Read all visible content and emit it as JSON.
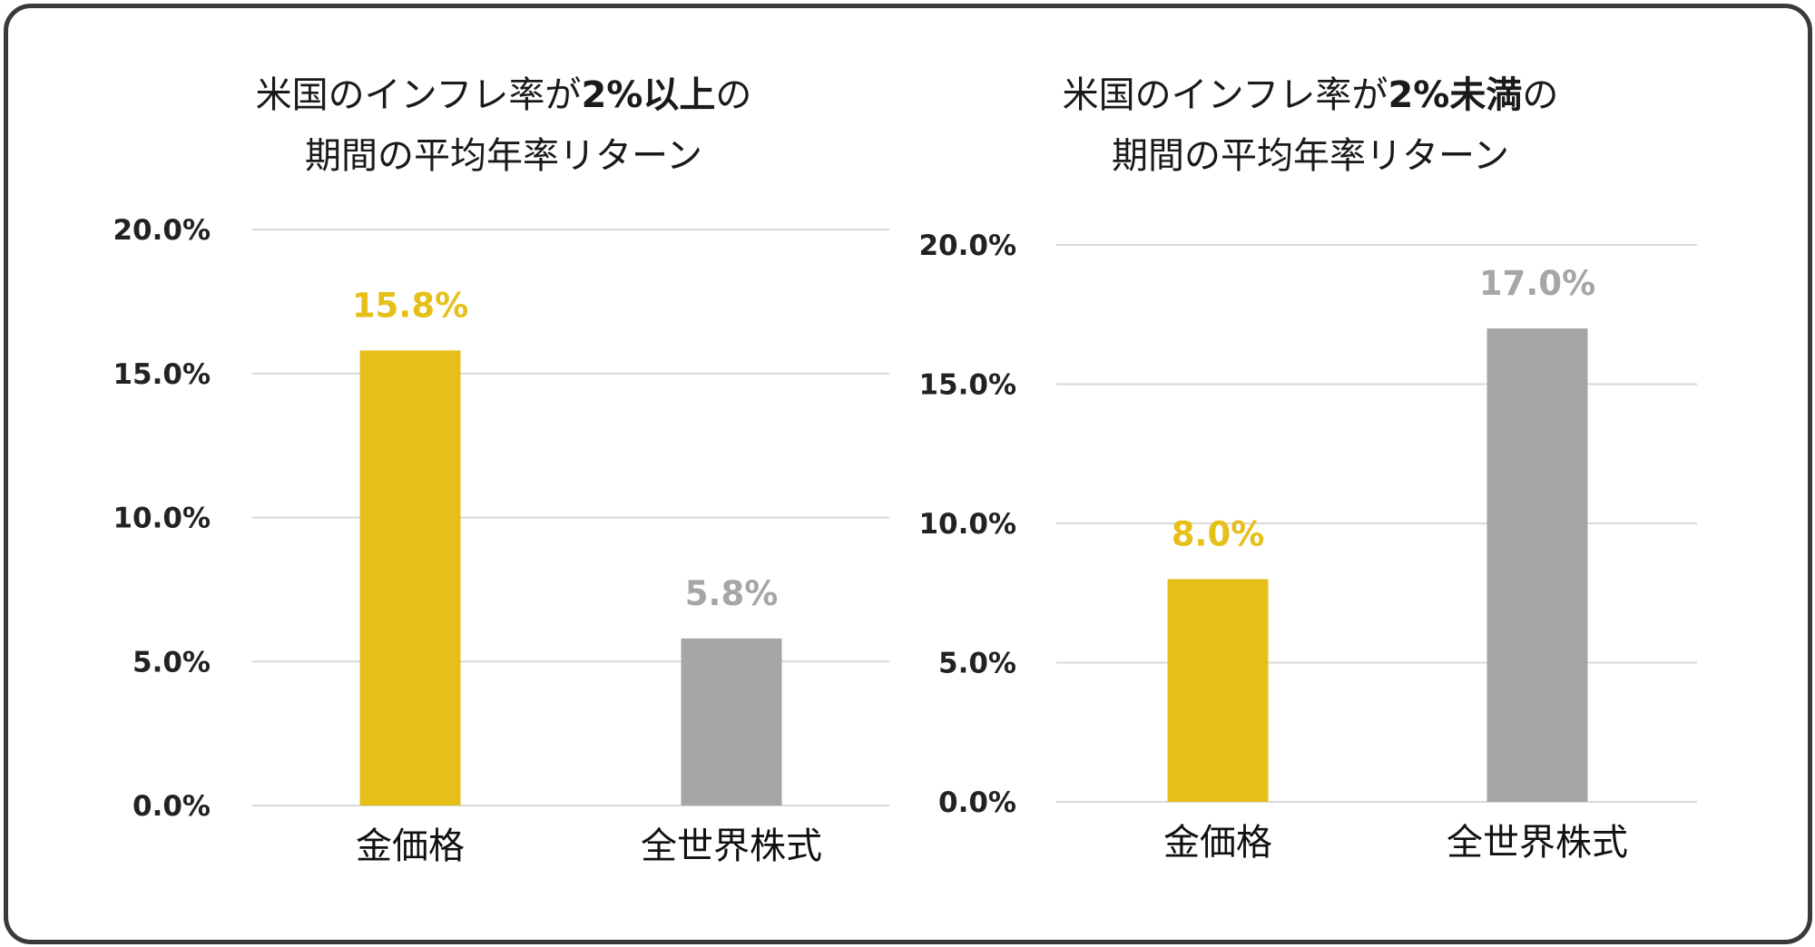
{
  "colors": {
    "gold": "#E6BF19",
    "gray": "#A6A6A6",
    "frame": "#3A3A3A",
    "grid": "#D9D9D9"
  },
  "chart_data": [
    {
      "type": "bar",
      "title_parts": {
        "before": "米国のインフレ率が",
        "highlight": "2%以上",
        "after": "の",
        "line2": "期間の平均年率リターン"
      },
      "title": "米国のインフレ率が2%以上の期間の平均年率リターン",
      "categories": [
        "金価格",
        "全世界株式"
      ],
      "values": [
        15.8,
        5.8
      ],
      "value_labels": [
        "15.8%",
        "5.8%"
      ],
      "bar_colors": [
        "#E6BF19",
        "#A6A6A6"
      ],
      "ylim": [
        0,
        20
      ],
      "yticks": [
        0,
        5,
        10,
        15,
        20
      ],
      "ytick_labels": [
        "0.0%",
        "5.0%",
        "10.0%",
        "15.0%",
        "20.0%"
      ],
      "grid": true,
      "xlabel": "",
      "ylabel": ""
    },
    {
      "type": "bar",
      "title_parts": {
        "before": "米国のインフレ率が",
        "highlight": "2%未満",
        "after": "の",
        "line2": "期間の平均年率リターン"
      },
      "title": "米国のインフレ率が2%未満の期間の平均年率リターン",
      "categories": [
        "金価格",
        "全世界株式"
      ],
      "values": [
        8.0,
        17.0
      ],
      "value_labels": [
        "8.0%",
        "17.0%"
      ],
      "bar_colors": [
        "#E6BF19",
        "#A6A6A6"
      ],
      "ylim": [
        0,
        20
      ],
      "yticks": [
        0,
        5,
        10,
        15,
        20
      ],
      "ytick_labels": [
        "0.0%",
        "5.0%",
        "10.0%",
        "15.0%",
        "20.0%"
      ],
      "grid": true,
      "xlabel": "",
      "ylabel": ""
    }
  ]
}
